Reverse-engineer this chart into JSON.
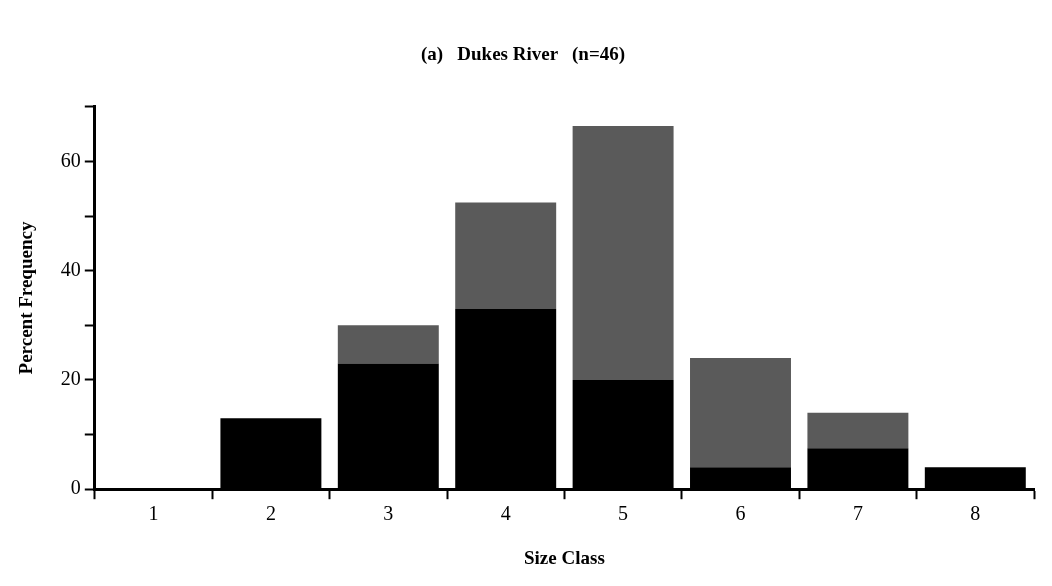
{
  "chart_data": {
    "type": "bar",
    "title": "(a)   Dukes River   (n=46)",
    "xlabel": "Size Class",
    "ylabel": "Percent Frequency",
    "categories": [
      "1",
      "2",
      "3",
      "4",
      "5",
      "6",
      "7",
      "8"
    ],
    "stacked": true,
    "series": [
      {
        "color": "#000000",
        "values": [
          0,
          13,
          23,
          33,
          20,
          4,
          7.5,
          4
        ]
      },
      {
        "color": "#5a5a5a",
        "values": [
          0,
          0,
          7,
          19.5,
          46.5,
          20,
          6.5,
          0
        ]
      }
    ],
    "ylim": [
      0,
      70
    ],
    "yticks": [
      0,
      {
        "value": 10,
        "label": null
      },
      20,
      {
        "value": 30,
        "label": null
      },
      40,
      {
        "value": 50,
        "label": null
      },
      60,
      {
        "value": 70,
        "label": null
      }
    ],
    "grid": false,
    "legend": false
  }
}
